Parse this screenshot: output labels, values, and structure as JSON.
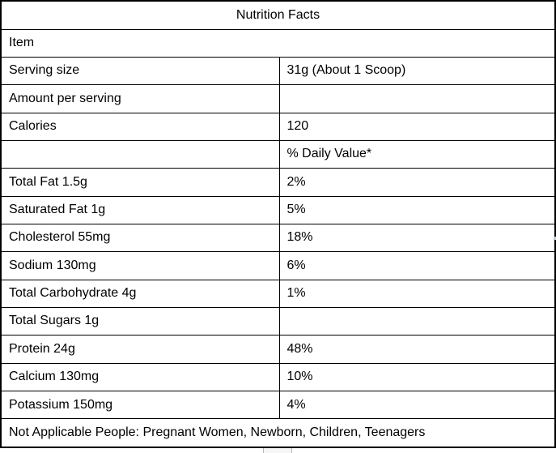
{
  "document": {
    "table": {
      "title": "Nutrition Facts",
      "rows": [
        {
          "label": "Item",
          "value": ""
        },
        {
          "label": "Serving size",
          "value": "31g (About 1 Scoop)"
        },
        {
          "label": "Amount per serving",
          "value": ""
        },
        {
          "label": "Calories",
          "value": "120"
        },
        {
          "label": "",
          "value": "% Daily Value*"
        },
        {
          "label": "Total Fat 1.5g",
          "value": "2%"
        },
        {
          "label": "Saturated Fat 1g",
          "value": "5%"
        },
        {
          "label": "Cholesterol 55mg",
          "value": "18%"
        },
        {
          "label": "Sodium 130mg",
          "value": "6%"
        },
        {
          "label": "Total Carbohydrate 4g",
          "value": "1%"
        },
        {
          "label": "Total Sugars 1g",
          "value": ""
        },
        {
          "label": "Protein 24g",
          "value": "48%"
        },
        {
          "label": "Calcium 130mg",
          "value": "10%"
        },
        {
          "label": "Potassium 150mg",
          "value": "4%"
        },
        {
          "label": "Not Applicable People: Pregnant Women, Newborn, Children, Teenagers",
          "value": ""
        }
      ]
    },
    "colors": {
      "border": "#000000",
      "text": "#000000",
      "background": "#ffffff"
    }
  }
}
